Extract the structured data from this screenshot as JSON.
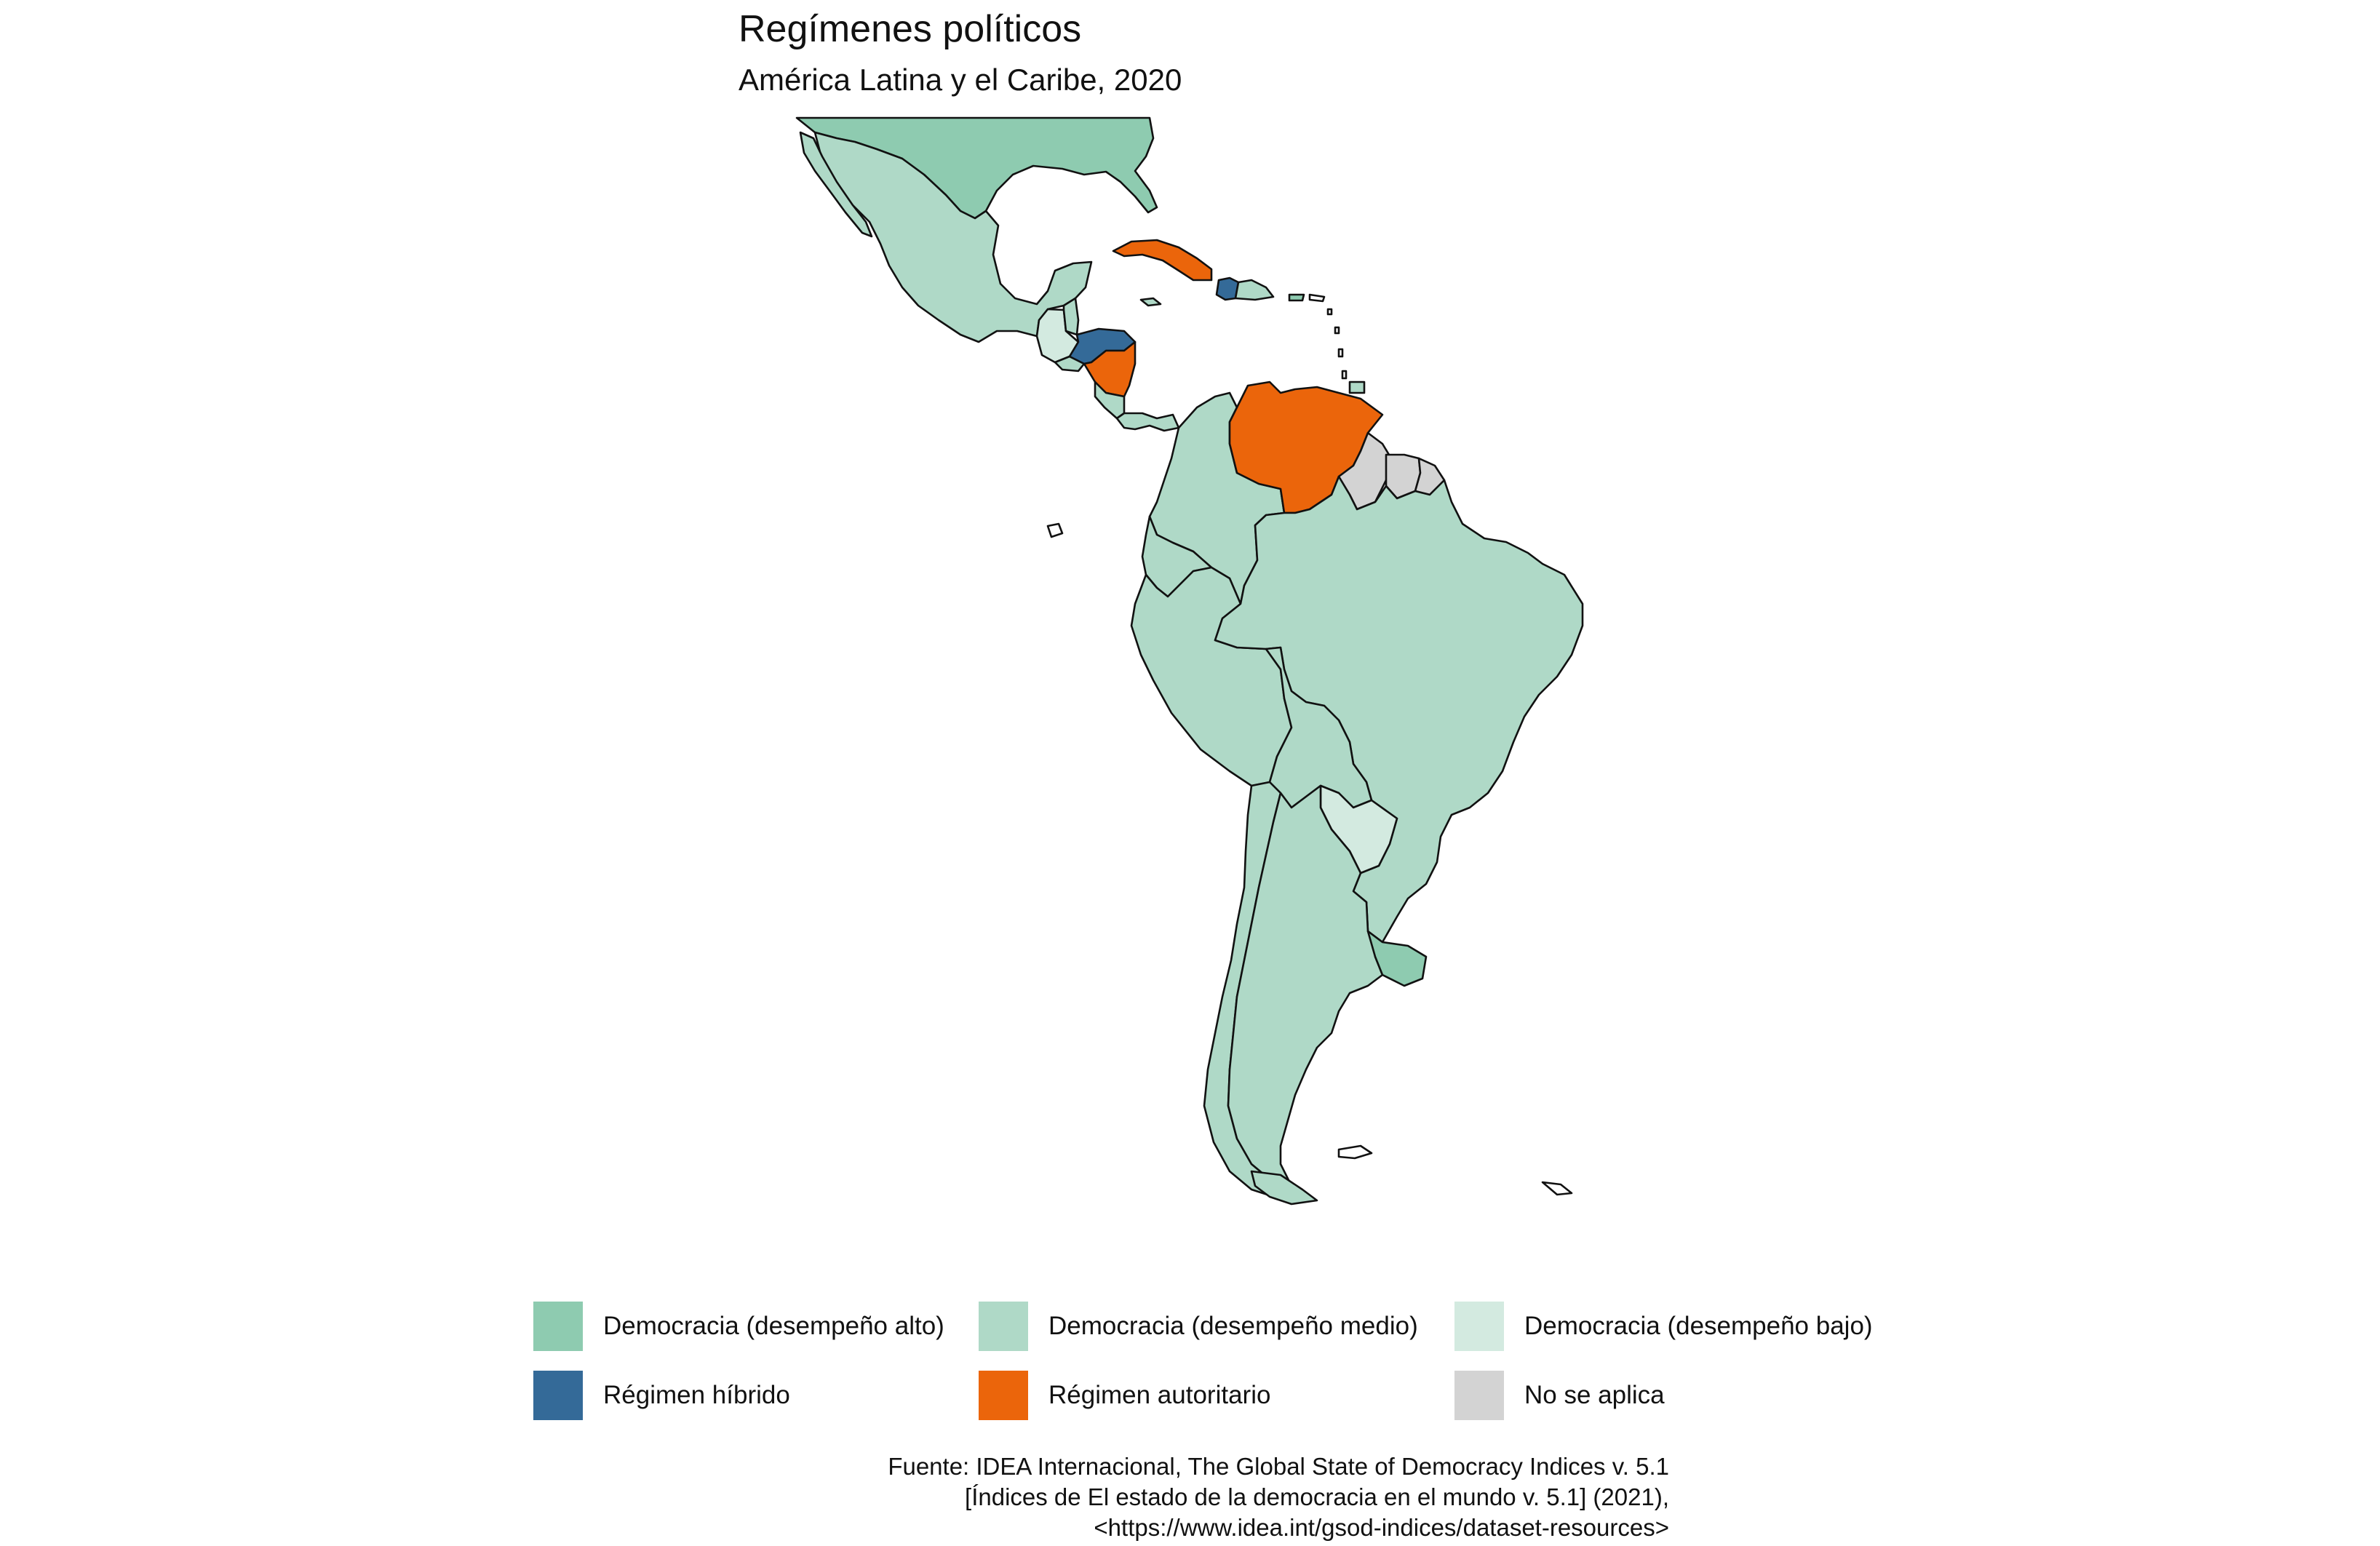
{
  "title": "Regímenes políticos",
  "subtitle": "América Latina y el Caribe, 2020",
  "colors": {
    "democracia_alto": "#8ecbb0",
    "democracia_medio": "#afd9c7",
    "democracia_bajo": "#d3eae0",
    "regimen_hibrido": "#346a98",
    "regimen_autoritario": "#eb650b",
    "no_se_aplica": "#d3d3d3"
  },
  "legend": [
    {
      "key": "democracia_alto",
      "label": "Democracia (desempeño alto)",
      "color": "#8ecbb0"
    },
    {
      "key": "democracia_medio",
      "label": "Democracia (desempeño medio)",
      "color": "#afd9c7"
    },
    {
      "key": "democracia_bajo",
      "label": "Democracia (desempeño bajo)",
      "color": "#d3eae0"
    },
    {
      "key": "regimen_hibrido",
      "label": "Régimen híbrido",
      "color": "#346a98"
    },
    {
      "key": "regimen_autoritario",
      "label": "Régimen autoritario",
      "color": "#eb650b"
    },
    {
      "key": "no_se_aplica",
      "label": "No se aplica",
      "color": "#d3d3d3"
    }
  ],
  "source_lines": [
    "Fuente: IDEA Internacional, The Global State of Democracy Indices v. 5.1",
    "[Índices de El estado de la democracia en el mundo v. 5.1] (2021),",
    "<https://www.idea.int/gsod-indices/dataset-resources>"
  ]
}
